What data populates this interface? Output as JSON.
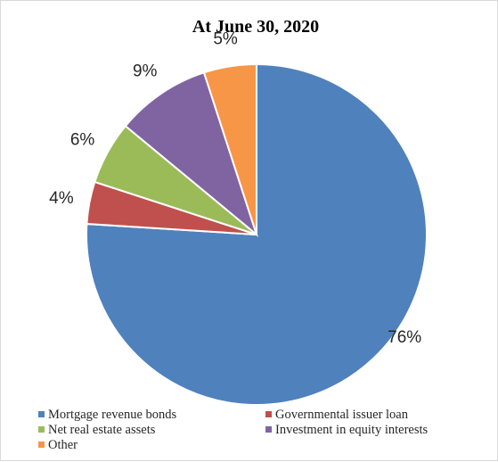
{
  "chart_data": {
    "type": "pie",
    "title": "At June 30, 2020",
    "categories": [
      "Mortgage revenue bonds",
      "Governmental issuer loan",
      "Net real estate assets",
      "Investment in equity interests",
      "Other"
    ],
    "values": [
      76,
      4,
      6,
      9,
      5
    ],
    "data_labels": [
      "76%",
      "4%",
      "6%",
      "9%",
      "5%"
    ],
    "colors": [
      "#4f81bd",
      "#c0504d",
      "#9bbb59",
      "#8064a2",
      "#f79646"
    ],
    "legend_position": "bottom",
    "start_angle": "12 o'clock",
    "direction": "clockwise"
  }
}
